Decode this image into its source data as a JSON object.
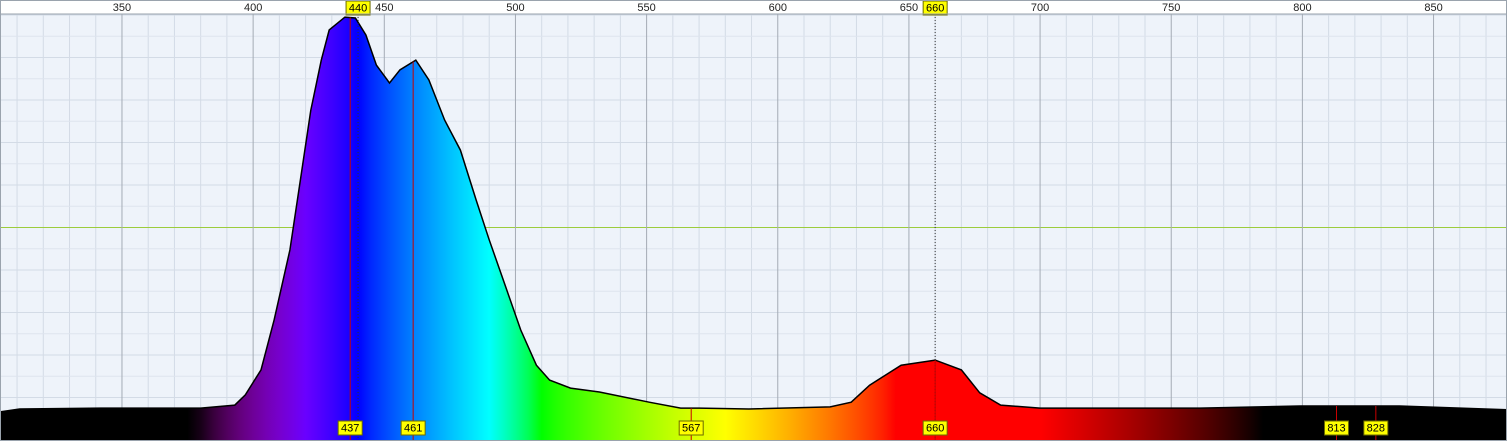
{
  "chart_data": {
    "type": "area",
    "x": [
      303.5,
      311,
      342,
      380,
      393,
      397,
      403,
      408,
      414,
      418,
      422,
      426,
      429,
      435,
      439,
      443,
      447,
      452,
      456,
      462,
      467,
      473,
      479,
      485,
      490,
      496,
      502,
      508,
      513,
      521,
      532,
      551,
      563,
      570,
      589,
      620,
      628,
      635,
      647,
      660,
      670,
      677,
      685,
      700,
      761,
      799,
      837,
      878
    ],
    "values": [
      6.6,
      7.3,
      7.5,
      7.5,
      8.2,
      10.6,
      16.5,
      28.2,
      44.7,
      61.2,
      77.6,
      89.4,
      96.5,
      99.5,
      99.3,
      95.3,
      88.2,
      84,
      87.1,
      89.4,
      84.7,
      75.3,
      68.2,
      56.5,
      47.1,
      36.5,
      25.9,
      17.6,
      14.1,
      12.2,
      11.3,
      8.9,
      7.5,
      7.5,
      7.3,
      7.8,
      8.9,
      12.9,
      17.6,
      18.8,
      16.5,
      11.1,
      8.2,
      7.5,
      7.5,
      8,
      8,
      7.1
    ],
    "xlim": [
      303.5,
      878
    ],
    "xticks": [
      300,
      350,
      400,
      450,
      500,
      550,
      600,
      650,
      700,
      750,
      800,
      850
    ],
    "ylim": [
      0,
      100
    ],
    "yticks": [
      0,
      10,
      20,
      30,
      40,
      50,
      60,
      70,
      80,
      90,
      100
    ],
    "grid": true,
    "peak_markers": [
      440,
      660
    ],
    "markers": [
      437,
      461,
      567,
      660,
      813,
      828
    ]
  }
}
